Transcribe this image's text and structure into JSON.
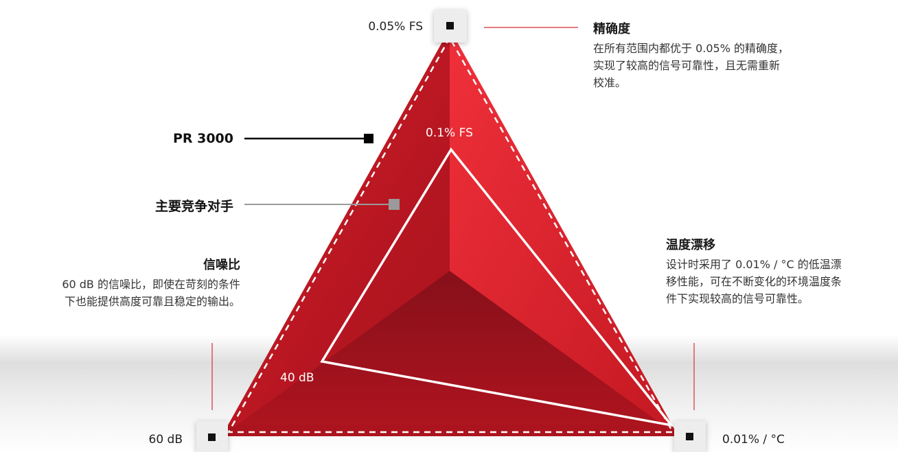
{
  "vertices": {
    "top_outer": "0.05% FS",
    "top_inner": "0.1% FS",
    "left_outer": "60 dB",
    "left_inner": "40 dB",
    "right_outer": "0.01% / °C"
  },
  "legend": {
    "series_primary": "PR 3000",
    "series_competitor": "主要竞争对手"
  },
  "callouts": {
    "accuracy": {
      "title": "精确度",
      "lines": [
        "在所有范围内都优于 0.05% 的精确度，",
        "实现了较高的信号可靠性，且无需重新",
        "校准。"
      ]
    },
    "snr": {
      "title": "信噪比",
      "lines": [
        "60 dB 的信噪比，即使在苛刻的条件",
        "下也能提供高度可靠且稳定的输出。"
      ]
    },
    "drift": {
      "title": "温度漂移",
      "lines": [
        "设计时采用了 0.01% / °C 的低温漂",
        "移性能，可在不断变化的环境温度条",
        "件下实现较高的信号可靠性。"
      ]
    }
  },
  "colors": {
    "red_main": "#c41a25",
    "red_light": "#e8212e",
    "red_dark": "#8c0e19",
    "primary_marker": "#000000",
    "competitor_marker": "#9a9a9a",
    "callout_line": "#d32f36"
  }
}
